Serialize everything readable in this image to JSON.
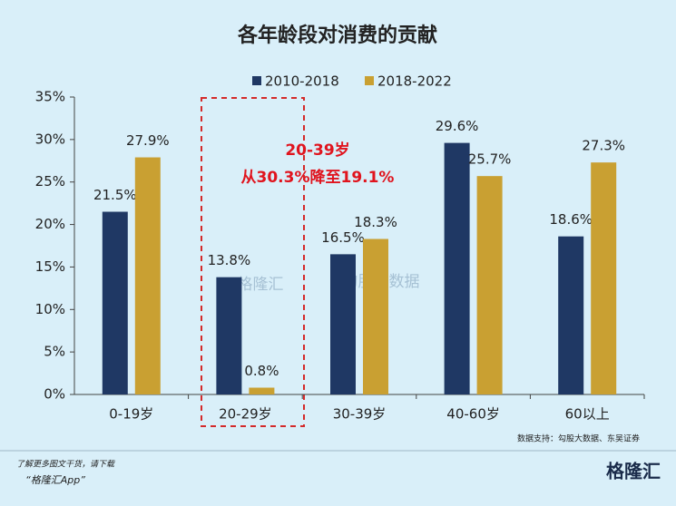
{
  "chart_data": {
    "type": "bar",
    "title": "各年龄段对消费的贡献",
    "categories": [
      "0-19岁",
      "20-29岁",
      "30-39岁",
      "40-60岁",
      "60以上"
    ],
    "series": [
      {
        "name": "2010-2018",
        "color": "#1f3864",
        "values": [
          21.5,
          13.8,
          16.5,
          29.6,
          18.6
        ],
        "value_labels": [
          "21.5%",
          "13.8%",
          "16.5%",
          "29.6%",
          "18.6%"
        ]
      },
      {
        "name": "2018-2022",
        "color": "#c9a032",
        "values": [
          27.9,
          0.8,
          18.3,
          25.7,
          27.3
        ],
        "value_labels": [
          "27.9%",
          "0.8%",
          "18.3%",
          "25.7%",
          "27.3%"
        ]
      }
    ],
    "ylim": [
      0,
      35
    ],
    "yticks": [
      {
        "value": 0,
        "label": "0%"
      },
      {
        "value": 5,
        "label": "5%"
      },
      {
        "value": 10,
        "label": "10%"
      },
      {
        "value": 15,
        "label": "15%"
      },
      {
        "value": 20,
        "label": "20%"
      },
      {
        "value": 25,
        "label": "25%"
      },
      {
        "value": 30,
        "label": "30%"
      },
      {
        "value": 35,
        "label": "35%"
      }
    ],
    "legend": "top",
    "annotations": [
      "20-39岁",
      "从30.3%降至19.1%"
    ],
    "source": "数据支持：勾股大数据、东吴证券",
    "watermarks": [
      "格隆汇",
      "勾股大数据"
    ]
  },
  "footer": {
    "line1": "了解更多图文干货，请下载",
    "line2": "“格隆汇App”",
    "logo": "格隆汇"
  }
}
